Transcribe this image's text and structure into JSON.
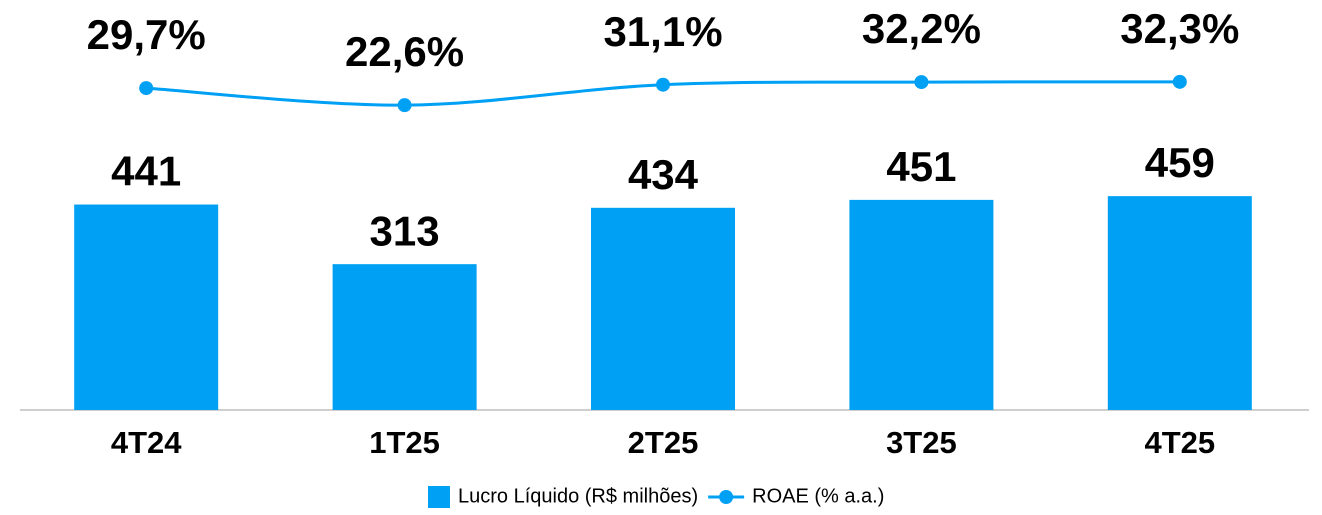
{
  "chart_data": {
    "type": "bar",
    "categories": [
      "4T24",
      "1T25",
      "2T25",
      "3T25",
      "4T25"
    ],
    "series": [
      {
        "name": "Lucro Líquido (R$ milhões)",
        "type": "bar",
        "color": "#00a0f5",
        "values": [
          441,
          313,
          434,
          451,
          459
        ]
      },
      {
        "name": "ROAE (% a.a.)",
        "type": "line",
        "axis": "y2",
        "color": "#00a0f5",
        "values": [
          29.7,
          22.6,
          31.1,
          32.2,
          32.3
        ],
        "value_labels": [
          "29,7%",
          "22,6%",
          "31,1%",
          "32,2%",
          "32,3%"
        ]
      }
    ],
    "ylim": [
      0,
      880
    ],
    "y2lim": [
      -104.4,
      66.4
    ],
    "legend": "bottom"
  }
}
